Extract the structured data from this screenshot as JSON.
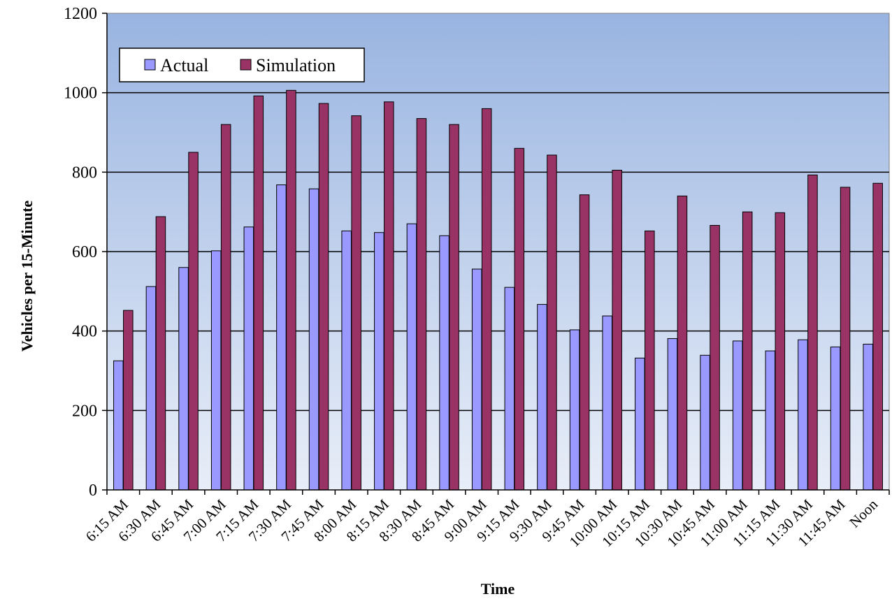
{
  "chart_data": {
    "type": "bar",
    "title": "",
    "xlabel": "Time",
    "ylabel": "Vehicles per 15-Minute",
    "ylim": [
      0,
      1200
    ],
    "yticks": [
      0,
      200,
      400,
      600,
      800,
      1000,
      1200
    ],
    "grid": true,
    "legend_position": "top-left",
    "categories": [
      "6:15 AM",
      "6:30 AM",
      "6:45 AM",
      "7:00 AM",
      "7:15 AM",
      "7:30 AM",
      "7:45 AM",
      "8:00 AM",
      "8:15 AM",
      "8:30 AM",
      "8:45 AM",
      "9:00 AM",
      "9:15 AM",
      "9:30 AM",
      "9:45 AM",
      "10:00 AM",
      "10:15 AM",
      "10:30 AM",
      "10:45 AM",
      "11:00 AM",
      "11:15 AM",
      "11:30 AM",
      "11:45 AM",
      "Noon"
    ],
    "series": [
      {
        "name": "Actual",
        "color": "#9999ff",
        "values": [
          325,
          512,
          560,
          602,
          662,
          768,
          758,
          652,
          648,
          670,
          640,
          556,
          510,
          467,
          403,
          438,
          332,
          381,
          339,
          375,
          350,
          378,
          360,
          367
        ]
      },
      {
        "name": "Simulation",
        "color": "#993366",
        "values": [
          452,
          688,
          850,
          920,
          992,
          1006,
          973,
          942,
          977,
          935,
          920,
          960,
          860,
          843,
          743,
          805,
          652,
          740,
          666,
          700,
          698,
          793,
          762,
          772
        ]
      }
    ],
    "plot_background": {
      "top": "#99b4e1",
      "bottom": "#e8eef8"
    }
  }
}
